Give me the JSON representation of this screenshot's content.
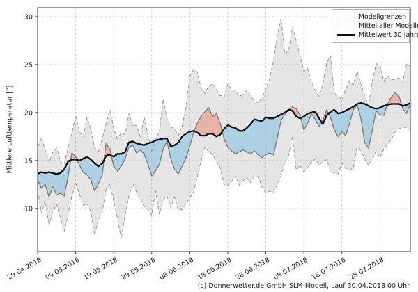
{
  "chart_data": {
    "type": "line",
    "title": "",
    "ylabel": "Mittlere Lufttemperatur [°]",
    "xlabel": "",
    "x_unit": "days since 29.04.2018",
    "xlim": [
      0,
      98
    ],
    "ylim": [
      5.5,
      30.94
    ],
    "grid": true,
    "legend_position": "top-right",
    "x_ticks": [
      {
        "day": 0,
        "label": "29.04.2018"
      },
      {
        "day": 10,
        "label": "09.05.2018"
      },
      {
        "day": 20,
        "label": "19.05.2018"
      },
      {
        "day": 30,
        "label": "29.05.2018"
      },
      {
        "day": 40,
        "label": "08.06.2018"
      },
      {
        "day": 50,
        "label": "18.06.2018"
      },
      {
        "day": 60,
        "label": "28.06.2018"
      },
      {
        "day": 70,
        "label": "08.07.2018"
      },
      {
        "day": 80,
        "label": "18.07.2018"
      },
      {
        "day": 90,
        "label": "28.07.2018"
      }
    ],
    "y_ticks": [
      10,
      15,
      20,
      25,
      30
    ],
    "series": [
      {
        "role": "max",
        "name": "Modellgrenzen (Maximum)",
        "values": [
          16.4,
          17.4,
          16.1,
          14.8,
          15.9,
          16.3,
          14.9,
          14.6,
          16.3,
          17.8,
          19.7,
          18.0,
          17.5,
          19.5,
          18.3,
          16.3,
          15.9,
          17.3,
          18.9,
          20.3,
          18.3,
          17.3,
          17.9,
          17.7,
          19.9,
          18.6,
          18.7,
          17.5,
          19.5,
          17.7,
          16.0,
          17.2,
          18.0,
          21.4,
          19.4,
          18.5,
          18.3,
          17.6,
          18.6,
          20.5,
          23.8,
          24.5,
          24.2,
          22.5,
          22.0,
          22.8,
          23.0,
          22.4,
          21.8,
          21.6,
          23.0,
          22.4,
          22.3,
          21.7,
          21.9,
          22.3,
          21.7,
          21.2,
          21.0,
          21.5,
          22.5,
          23.5,
          25.4,
          28.0,
          29.8,
          26.1,
          26.5,
          28.9,
          27.5,
          26.0,
          24.3,
          24.6,
          23.2,
          22.3,
          21.7,
          23.0,
          25.2,
          25.9,
          22.0,
          21.8,
          21.3,
          22.4,
          23.3,
          22.9,
          24.3,
          23.0,
          21.8,
          20.7,
          23.3,
          25.1,
          25.0,
          23.3,
          23.8,
          23.4,
          23.5,
          23.6,
          23.2,
          25.1,
          24.8
        ]
      },
      {
        "role": "min",
        "name": "Modellgrenzen (Minimum)",
        "values": [
          11.9,
          9.5,
          10.8,
          8.2,
          9.7,
          10.4,
          9.0,
          7.6,
          9.4,
          11.3,
          12.6,
          11.5,
          10.3,
          10.5,
          9.7,
          7.2,
          8.9,
          9.6,
          12.0,
          12.5,
          10.8,
          9.0,
          6.8,
          9.3,
          11.3,
          12.6,
          11.7,
          11.0,
          10.2,
          9.9,
          9.3,
          11.9,
          9.4,
          10.9,
          11.3,
          10.1,
          11.2,
          9.8,
          9.9,
          10.5,
          11.1,
          11.7,
          13.3,
          15.0,
          16.4,
          15.9,
          15.7,
          14.9,
          14.3,
          12.5,
          12.4,
          12.8,
          13.4,
          12.4,
          12.9,
          13.2,
          12.7,
          13.3,
          13.4,
          12.2,
          11.6,
          11.8,
          11.7,
          12.5,
          13.4,
          14.8,
          15.5,
          17.5,
          14.0,
          14.5,
          13.8,
          14.3,
          14.8,
          15.2,
          14.5,
          14.9,
          15.1,
          13.9,
          13.7,
          13.6,
          14.7,
          14.2,
          14.0,
          14.2,
          16.4,
          16.0,
          15.2,
          14.5,
          15.1,
          16.0,
          15.3,
          16.2,
          16.7,
          17.2,
          18.0,
          18.3,
          18.5,
          18.4,
          18.2
        ]
      },
      {
        "role": "mean",
        "name": "Mittel aller Modelle",
        "values": [
          13.0,
          12.1,
          12.5,
          11.2,
          12.3,
          11.4,
          11.6,
          11.3,
          13.3,
          15.8,
          15.4,
          14.5,
          13.8,
          13.5,
          13.0,
          11.8,
          12.6,
          13.5,
          16.8,
          16.2,
          14.4,
          13.9,
          14.4,
          15.2,
          16.4,
          16.6,
          15.8,
          16.1,
          15.7,
          14.6,
          13.4,
          13.9,
          14.6,
          16.2,
          17.0,
          15.2,
          14.1,
          13.6,
          14.4,
          15.3,
          16.5,
          17.9,
          18.9,
          19.6,
          20.1,
          20.5,
          19.6,
          19.9,
          18.9,
          17.3,
          16.4,
          16.0,
          15.7,
          15.9,
          16.1,
          15.9,
          15.7,
          16.0,
          15.6,
          15.3,
          15.6,
          15.8,
          15.6,
          17.3,
          19.2,
          19.8,
          20.3,
          20.6,
          20.4,
          19.7,
          18.2,
          18.9,
          19.9,
          19.3,
          18.5,
          19.2,
          20.3,
          19.5,
          18.2,
          17.5,
          18.0,
          17.6,
          18.9,
          20.3,
          20.8,
          19.4,
          16.9,
          16.3,
          18.2,
          20.2,
          19.8,
          19.7,
          20.9,
          21.6,
          22.1,
          21.7,
          20.4,
          19.9,
          20.9
        ]
      },
      {
        "role": "clim",
        "name": "Mittelwert 30 Jahre",
        "values": [
          13.6,
          13.8,
          13.7,
          13.8,
          13.7,
          13.6,
          13.7,
          14.1,
          14.9,
          15.1,
          15.1,
          15.0,
          15.2,
          15.4,
          15.1,
          14.7,
          14.4,
          14.7,
          15.5,
          15.6,
          15.4,
          15.7,
          15.7,
          15.9,
          16.9,
          17.0,
          16.8,
          16.7,
          16.6,
          16.8,
          16.9,
          17.1,
          17.2,
          17.3,
          17.3,
          16.5,
          16.6,
          16.9,
          17.5,
          17.8,
          18.0,
          18.1,
          17.9,
          17.6,
          17.6,
          17.8,
          17.8,
          17.5,
          17.7,
          18.3,
          18.7,
          18.5,
          18.4,
          18.1,
          18.1,
          18.4,
          18.8,
          19.3,
          19.2,
          19.1,
          19.5,
          19.4,
          19.4,
          19.6,
          19.8,
          20.0,
          20.3,
          20.2,
          19.6,
          19.4,
          19.6,
          19.9,
          20.0,
          20.1,
          19.4,
          18.8,
          19.7,
          20.1,
          20.3,
          19.9,
          20.0,
          20.2,
          20.4,
          20.6,
          20.9,
          21.0,
          20.9,
          20.7,
          20.5,
          20.4,
          20.5,
          20.7,
          20.8,
          20.9,
          20.9,
          20.9,
          20.7,
          20.8,
          21.0
        ]
      }
    ],
    "colors": {
      "band_fill": "rgba(180,180,180,0.35)",
      "bound_line": "#999999",
      "mean_line": "#7f7f7f",
      "clim_line": "#111111",
      "below_fill": "rgba(150,200,227,0.7)",
      "above_fill": "rgba(233,130,103,0.5)",
      "grid": "#cccccc",
      "spine": "#333333"
    }
  },
  "legend": {
    "items": [
      {
        "label": "Modellgrenzen",
        "style": "dashed"
      },
      {
        "label": "Mittel aller Modelle",
        "style": "solid"
      },
      {
        "label": "Mittelwert 30 Jahre",
        "style": "thick"
      }
    ]
  },
  "footer": {
    "copyright": "(c) Donnerwetter.de GmbH SLM-Modell, Lauf 30.04.2018 00 Uhr"
  }
}
